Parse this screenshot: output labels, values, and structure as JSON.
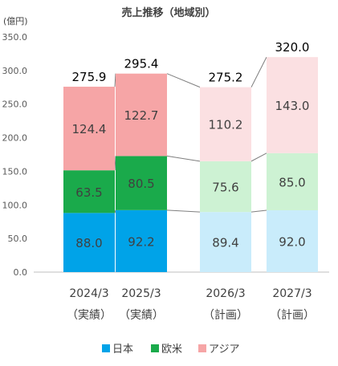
{
  "chart_data": {
    "type": "bar",
    "stacked": true,
    "title": "売上推移（地域別）",
    "unit_label": "(億円)",
    "categories": [
      "2024/3",
      "2025/3",
      "2026/3",
      "2027/3"
    ],
    "category_sublabels": [
      "（実績）",
      "（実績）",
      "（計画）",
      "（計画）"
    ],
    "ylim": [
      0,
      350
    ],
    "yticks": [
      "0.0",
      "50.0",
      "100.0",
      "150.0",
      "200.0",
      "250.0",
      "300.0",
      "350.0"
    ],
    "series": [
      {
        "name": "日本",
        "values": [
          88.0,
          92.2,
          89.4,
          92.0
        ],
        "labels": [
          "88.0",
          "92.2",
          "89.4",
          "92.0"
        ],
        "colors": [
          "#00a3e8",
          "#00a3e8",
          "#c9ecfb",
          "#c9ecfb"
        ],
        "legend_color": "#00a3e8"
      },
      {
        "name": "欧米",
        "values": [
          63.5,
          80.5,
          75.6,
          85.0
        ],
        "labels": [
          "63.5",
          "80.5",
          "75.6",
          "85.0"
        ],
        "colors": [
          "#1aaa4b",
          "#1aaa4b",
          "#cdf2d3",
          "#cdf2d3"
        ],
        "legend_color": "#1aaa4b"
      },
      {
        "name": "アジア",
        "values": [
          124.4,
          122.7,
          110.2,
          143.0
        ],
        "labels": [
          "124.4",
          "122.7",
          "110.2",
          "143.0"
        ],
        "colors": [
          "#f6a5a6",
          "#f6a5a6",
          "#fbe0e2",
          "#fbe0e2"
        ],
        "legend_color": "#f6a5a6"
      }
    ],
    "totals": [
      "275.9",
      "295.4",
      "275.2",
      "320.0"
    ],
    "total_values": [
      275.9,
      295.4,
      275.2,
      320.0
    ],
    "connector_color": "#7f7f7f",
    "axis_color": "#bfbfbf",
    "legend_position": "bottom",
    "grid": false
  }
}
